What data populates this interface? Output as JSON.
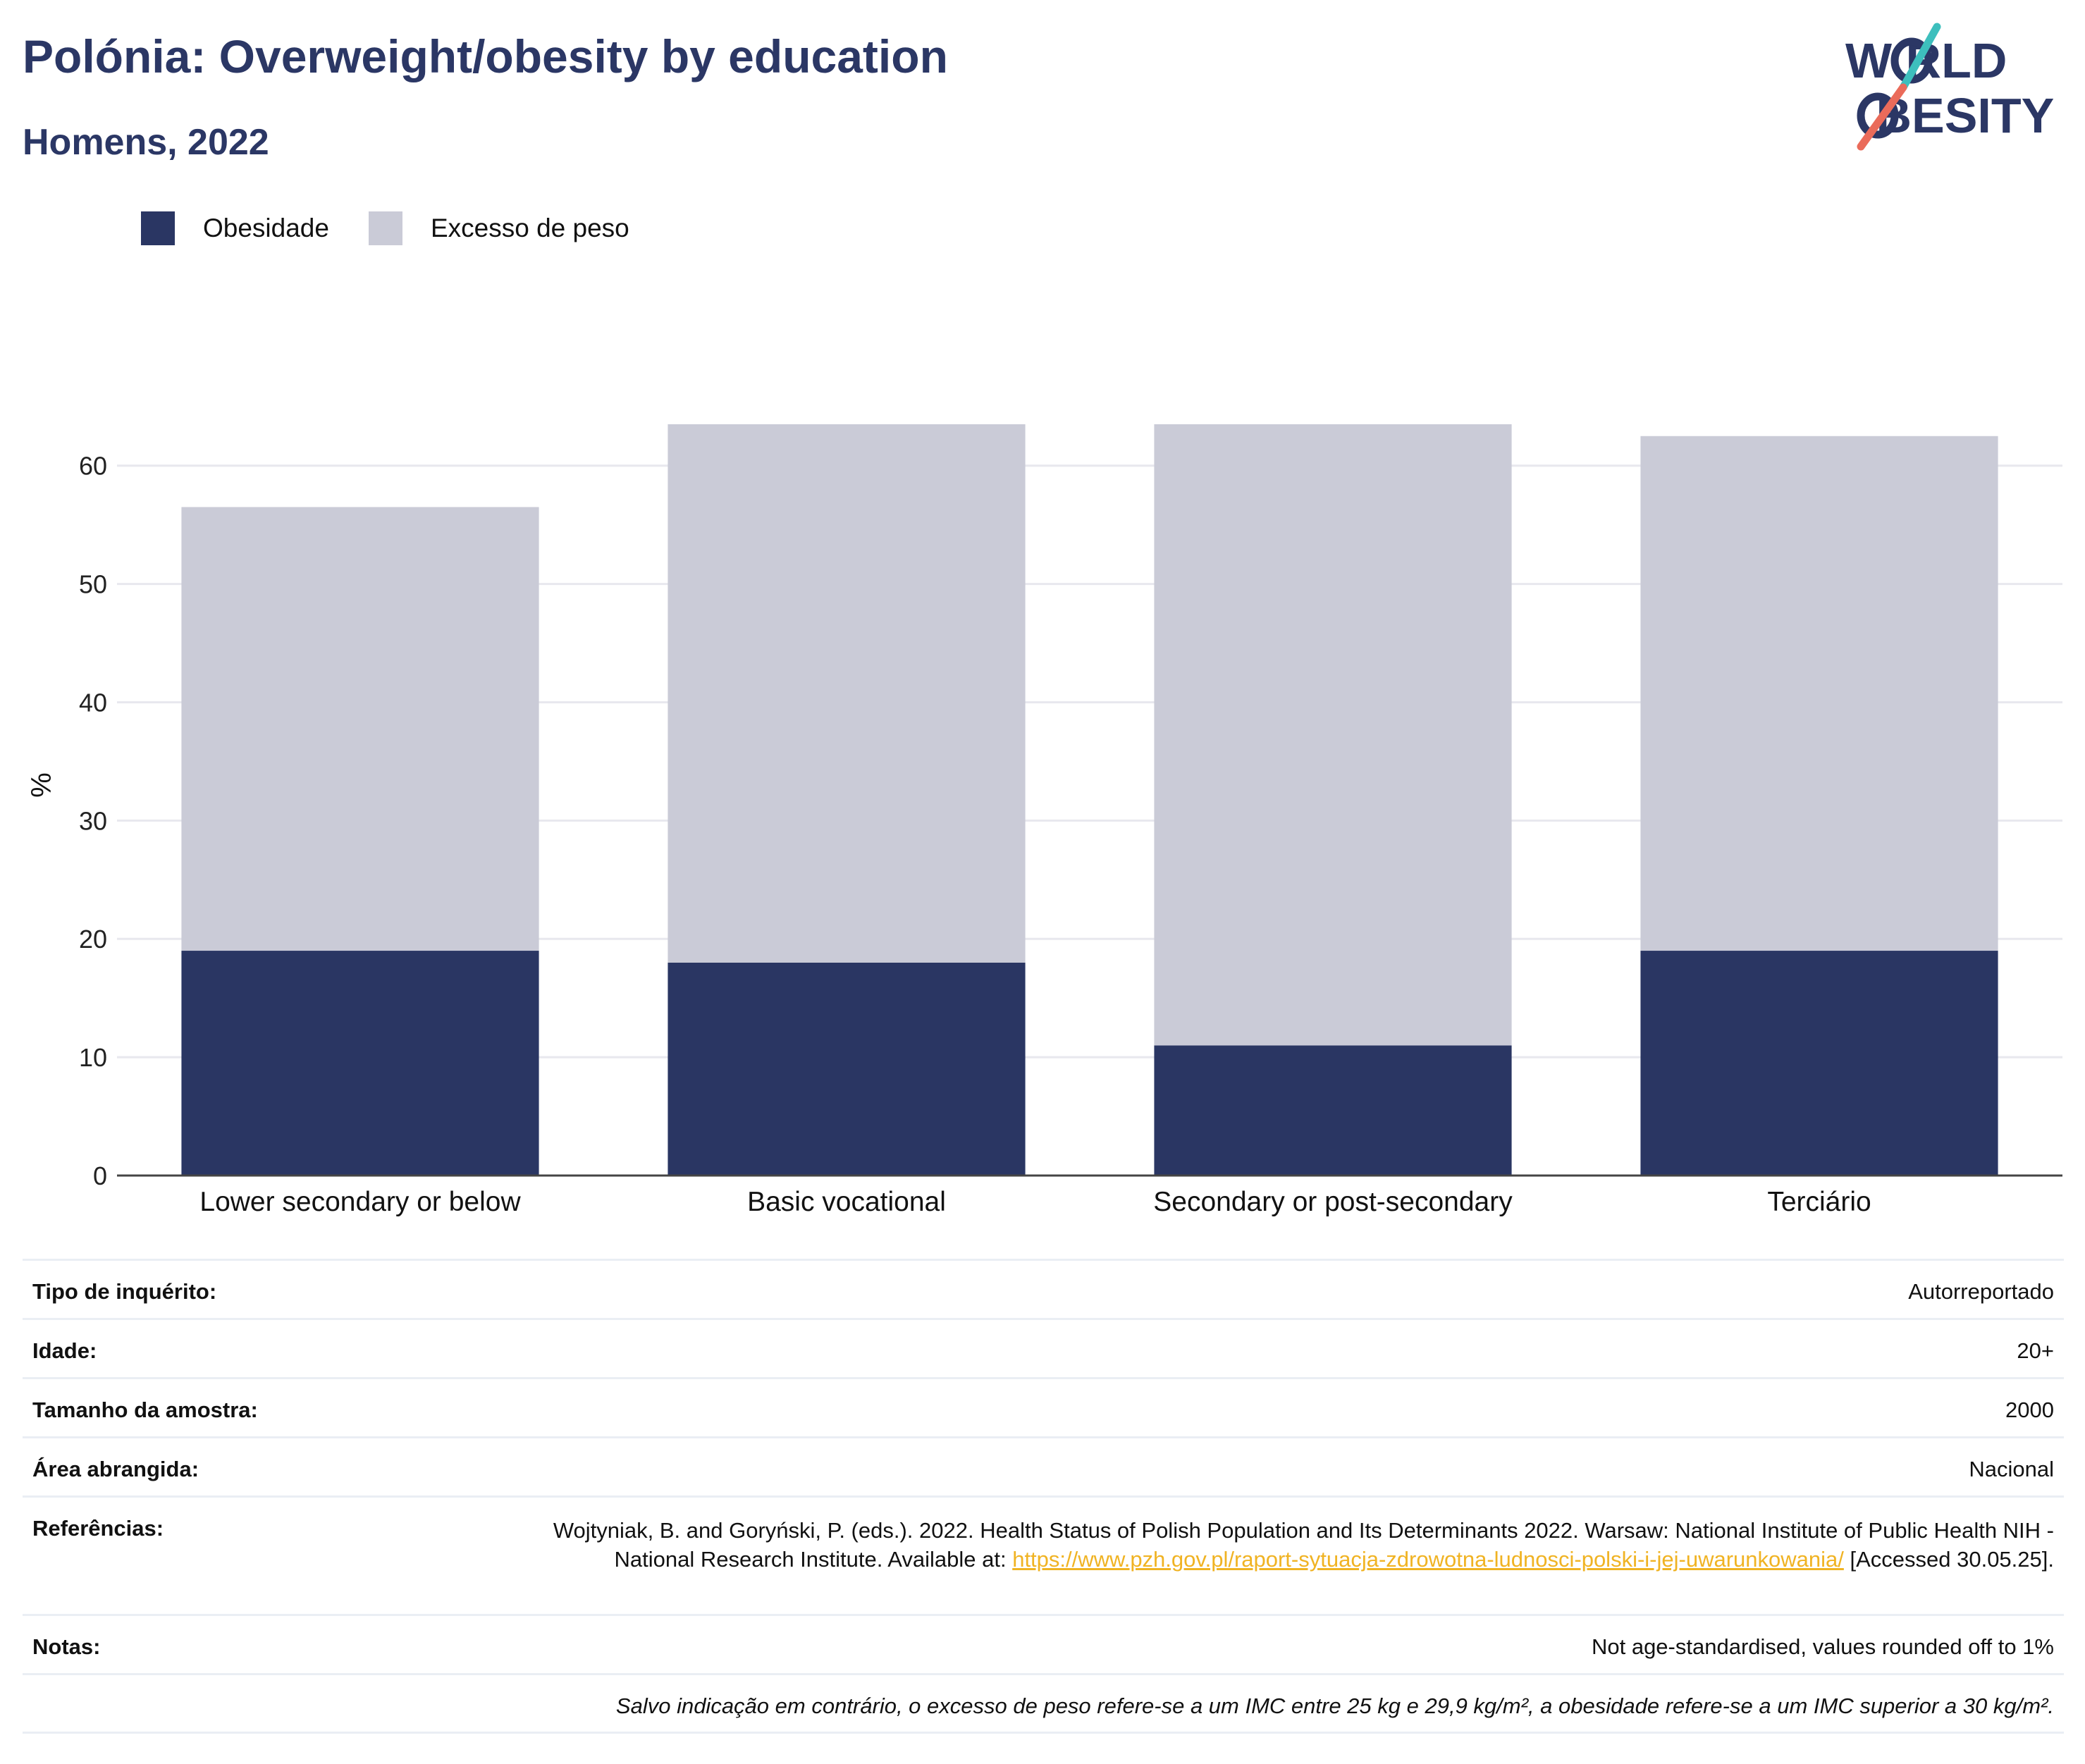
{
  "title": "Polónia: Overweight/obesity by education",
  "subtitle": "Homens, 2022",
  "logo": {
    "line1": "W RLD",
    "line2": " BESITY"
  },
  "colors": {
    "title": "#2b3765",
    "obesity": "#2a3663",
    "overweight": "#cacbd7",
    "grid": "#e8e8ee",
    "link": "#f0b323"
  },
  "legend": [
    {
      "label": "Obesidade",
      "color": "#2a3663"
    },
    {
      "label": "Excesso de peso",
      "color": "#cacbd7"
    }
  ],
  "chart_data": {
    "type": "bar",
    "stacked": true,
    "categories": [
      "Lower secondary or below",
      "Basic vocational",
      "Secondary or post-secondary",
      "Terciário"
    ],
    "series": [
      {
        "name": "Obesidade",
        "values": [
          19,
          18,
          11,
          19
        ]
      },
      {
        "name": "Excesso de peso",
        "values": [
          37.5,
          45.5,
          52.5,
          43.5
        ]
      }
    ],
    "totals": [
      56.5,
      63.5,
      63.5,
      62.5
    ],
    "ylabel": "%",
    "yticks": [
      0,
      10,
      20,
      30,
      40,
      50,
      60
    ],
    "ylim": [
      0,
      66
    ],
    "grid": true,
    "legend_position": "top-left"
  },
  "info": {
    "survey_type": {
      "label": "Tipo de inquérito:",
      "value": "Autorreportado"
    },
    "age": {
      "label": "Idade:",
      "value": "20+"
    },
    "sample_size": {
      "label": "Tamanho da amostra:",
      "value": "2000"
    },
    "area": {
      "label": "Área abrangida:",
      "value": "Nacional"
    },
    "references": {
      "label": "Referências:",
      "text_before": "Wojtyniak, B. and Goryński, P. (eds.). 2022. Health Status of Polish Population and Its Determinants 2022. Warsaw: National Institute of Public Health NIH - National Research Institute. Available at: ",
      "link": "https://www.pzh.gov.pl/raport-sytuacja-zdrowotna-ludnosci-polski-i-jej-uwarunkowania/",
      "text_after": " [Accessed 30.05.25]."
    },
    "notes": {
      "label": "Notas:",
      "value": "Not age-standardised, values rounded off to 1%"
    },
    "footnote": "Salvo indicação em contrário, o excesso de peso refere-se a um IMC entre 25 kg e 29,9 kg/m², a obesidade refere-se a um IMC superior a 30 kg/m²."
  }
}
